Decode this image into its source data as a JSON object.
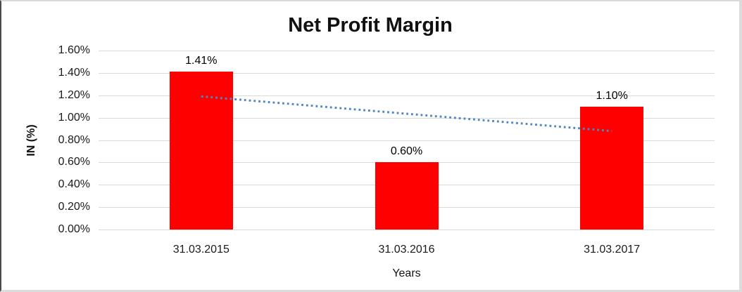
{
  "chart_data": {
    "type": "bar",
    "title": "Net Profit Margin",
    "xlabel": "Years",
    "ylabel": "IN (%)",
    "categories": [
      "31.03.2015",
      "31.03.2016",
      "31.03.2017"
    ],
    "values": [
      1.41,
      0.6,
      1.1
    ],
    "data_labels": [
      "1.41%",
      "0.60%",
      "1.10%"
    ],
    "series_name": "Net Profit Margin",
    "bar_color": "#ff0000",
    "y_axis": {
      "min": 0,
      "max": 1.6,
      "step": 0.2,
      "tick_labels": [
        "0.00%",
        "0.20%",
        "0.40%",
        "0.60%",
        "0.80%",
        "1.00%",
        "1.20%",
        "1.40%",
        "1.60%"
      ]
    },
    "grid": true,
    "legend": "none",
    "gridline_color": "#d9d9d9",
    "trendline": {
      "type": "linear",
      "style": "dotted",
      "color": "#4f86c6",
      "start_value": 1.19,
      "end_value": 0.88
    }
  }
}
